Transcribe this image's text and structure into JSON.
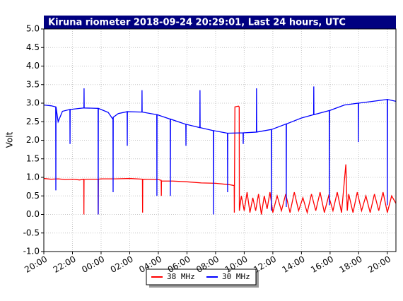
{
  "chart_data": {
    "type": "line",
    "title": "Kiruna riometer 2018-09-24 20:29:01, Last 24 hours, UTC",
    "y_label": "Volt",
    "xlim": [
      0,
      24.6
    ],
    "xticks": [
      {
        "value": 0,
        "label": "20:00"
      },
      {
        "value": 2,
        "label": "22:00"
      },
      {
        "value": 4,
        "label": "00:00"
      },
      {
        "value": 6,
        "label": "02:00"
      },
      {
        "value": 8,
        "label": "04:00"
      },
      {
        "value": 10,
        "label": "06:00"
      },
      {
        "value": 12,
        "label": "08:00"
      },
      {
        "value": 14,
        "label": "10:00"
      },
      {
        "value": 16,
        "label": "12:00"
      },
      {
        "value": 18,
        "label": "14:00"
      },
      {
        "value": 20,
        "label": "16:00"
      },
      {
        "value": 22,
        "label": "18:00"
      },
      {
        "value": 24,
        "label": "20:00"
      }
    ],
    "ylim": [
      -1,
      5
    ],
    "yticks": [
      {
        "value": -1,
        "label": "-1.0"
      },
      {
        "value": -0.5,
        "label": "-0.5"
      },
      {
        "value": 0,
        "label": "0.0"
      },
      {
        "value": 0.5,
        "label": "0.5"
      },
      {
        "value": 1,
        "label": "1.0"
      },
      {
        "value": 1.5,
        "label": "1.5"
      },
      {
        "value": 2,
        "label": "2.0"
      },
      {
        "value": 2.5,
        "label": "2.5"
      },
      {
        "value": 3,
        "label": "3.0"
      },
      {
        "value": 3.5,
        "label": "3.5"
      },
      {
        "value": 4,
        "label": "4.0"
      },
      {
        "value": 4.5,
        "label": "4.5"
      },
      {
        "value": 5,
        "label": "5.0"
      }
    ],
    "grid": true,
    "legend": "bottom",
    "series": [
      {
        "name": "38 MHz",
        "color": "#ff0000",
        "x": [
          0,
          0.5,
          1,
          1.5,
          2,
          2.5,
          2.79,
          2.8,
          2.81,
          3,
          3.5,
          3.79,
          3.8,
          3.81,
          4,
          5,
          6,
          6.89,
          6.9,
          6.91,
          7,
          8,
          8.2,
          8.21,
          8.22,
          9,
          10,
          11,
          12,
          12.5,
          13,
          13.3,
          13.31,
          13.35,
          13.6,
          13.65,
          13.66,
          13.8,
          14,
          14.2,
          14.4,
          14.6,
          14.8,
          15,
          15.2,
          15.4,
          15.6,
          15.8,
          16,
          16.3,
          16.6,
          16.9,
          17.2,
          17.5,
          17.8,
          18.1,
          18.4,
          18.7,
          19,
          19.3,
          19.6,
          19.9,
          20.2,
          20.5,
          20.8,
          21.1,
          21.2,
          21.3,
          21.6,
          21.9,
          22.2,
          22.5,
          22.8,
          23.1,
          23.4,
          23.7,
          24,
          24.3,
          24.6
        ],
        "values": [
          0.97,
          0.95,
          0.96,
          0.94,
          0.95,
          0.93,
          0.95,
          0.0,
          0.94,
          0.95,
          0.95,
          0.95,
          0.0,
          0.95,
          0.96,
          0.96,
          0.97,
          0.95,
          0.05,
          0.93,
          0.95,
          0.94,
          0.92,
          0.5,
          0.9,
          0.9,
          0.88,
          0.85,
          0.84,
          0.82,
          0.8,
          0.78,
          0.05,
          2.9,
          2.92,
          2.9,
          0.1,
          0.5,
          0.1,
          0.6,
          0.05,
          0.45,
          0.1,
          0.55,
          0.0,
          0.5,
          0.15,
          0.6,
          0.05,
          0.5,
          0.1,
          0.55,
          0.05,
          0.6,
          0.1,
          0.45,
          0.05,
          0.55,
          0.1,
          0.6,
          0.05,
          0.5,
          0.1,
          0.6,
          0.05,
          1.35,
          0.1,
          0.55,
          0.05,
          0.6,
          0.1,
          0.5,
          0.05,
          0.55,
          0.1,
          0.6,
          0.05,
          0.5,
          0.3
        ]
      },
      {
        "name": "30 MHz",
        "color": "#0000ff",
        "x": [
          0,
          0.5,
          0.83,
          0.84,
          0.85,
          1.0,
          1.3,
          1.82,
          1.83,
          1.84,
          2.5,
          2.8,
          2.81,
          2.82,
          3.79,
          3.8,
          3.81,
          4.5,
          4.8,
          4.83,
          4.84,
          4.85,
          5.2,
          5.82,
          5.83,
          5.84,
          6.85,
          6.86,
          6.87,
          7.89,
          7.9,
          7.91,
          8.83,
          8.84,
          8.85,
          9.92,
          9.93,
          9.94,
          10.9,
          10.91,
          10.92,
          11.84,
          11.85,
          11.86,
          12.83,
          12.84,
          12.85,
          13.92,
          13.93,
          13.94,
          14.85,
          14.86,
          14.87,
          15.89,
          15.9,
          15.91,
          16.93,
          16.94,
          16.95,
          18,
          18.85,
          18.86,
          18.87,
          19.94,
          19.95,
          19.96,
          21,
          21.97,
          21.98,
          21.99,
          23,
          23.99,
          24,
          24.01,
          24.6
        ],
        "values": [
          2.95,
          2.93,
          2.9,
          0.65,
          2.9,
          2.5,
          2.78,
          2.83,
          1.9,
          2.83,
          2.86,
          2.87,
          3.4,
          2.87,
          2.86,
          0.0,
          2.86,
          2.75,
          2.58,
          2.6,
          0.6,
          2.62,
          2.72,
          2.77,
          1.85,
          2.77,
          2.76,
          3.35,
          2.76,
          2.69,
          0.5,
          2.69,
          2.57,
          0.5,
          2.57,
          2.43,
          1.85,
          2.43,
          2.34,
          3.35,
          2.34,
          2.26,
          0.0,
          2.26,
          2.19,
          0.6,
          2.19,
          2.2,
          1.9,
          2.2,
          2.22,
          3.4,
          2.22,
          2.29,
          0.1,
          2.29,
          2.44,
          0.2,
          2.44,
          2.6,
          2.69,
          3.45,
          2.69,
          2.8,
          0.25,
          2.8,
          2.95,
          3.0,
          1.95,
          3.0,
          3.05,
          3.1,
          0.25,
          3.1,
          3.05
        ]
      }
    ]
  }
}
